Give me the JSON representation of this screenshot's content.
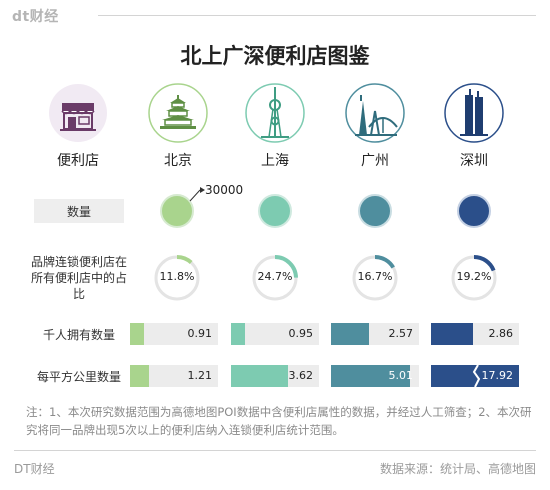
{
  "header": {
    "logo": "dt财经",
    "title": "北上广深便利店图鉴"
  },
  "columns": [
    {
      "label": "便利店",
      "icon": "store-icon"
    },
    {
      "label": "北京",
      "icon": "temple-of-heaven-icon"
    },
    {
      "label": "上海",
      "icon": "oriental-pearl-tower-icon"
    },
    {
      "label": "广州",
      "icon": "canton-tower-icon"
    },
    {
      "label": "深圳",
      "icon": "skyscraper-icon"
    }
  ],
  "rows": {
    "count_label": "数量",
    "count_marker_label": "30000",
    "share_label": "品牌连锁便利店在所有便利店中的占比",
    "per_thousand_label": "千人拥有数量",
    "per_sqkm_label": "每平方公里数量"
  },
  "colors": {
    "beijing": "#a9d48d",
    "shanghai": "#7dcbb1",
    "guangzhou": "#4f8e9e",
    "shenzhen": "#2b4f8a",
    "track": "#ececec"
  },
  "chart_data": {
    "type": "table",
    "title": "北上广深便利店图鉴",
    "cities": [
      "北京",
      "上海",
      "广州",
      "深圳"
    ],
    "chain_share_percent": [
      11.8,
      24.7,
      16.7,
      19.2
    ],
    "chain_share_labels": [
      "11.8%",
      "24.7%",
      "16.7%",
      "19.2%"
    ],
    "per_thousand_people": [
      0.91,
      0.95,
      2.57,
      2.86
    ],
    "per_thousand_labels": [
      "0.91",
      "0.95",
      "2.57",
      "2.86"
    ],
    "per_sq_km": [
      1.21,
      3.62,
      5.01,
      17.92
    ],
    "per_sq_km_labels": [
      "1.21",
      "3.62",
      "5.01",
      "17.92"
    ],
    "count_reference": 30000,
    "count_relative": [
      1.0,
      1.0,
      1.0,
      1.0
    ]
  },
  "footer": {
    "note": "注：1、本次研究数据范围为高德地图POI数据中含便利店属性的数据，并经过人工筛查；2、本次研究将同一品牌出现5次以上的便利店纳入连锁便利店统计范围。",
    "brand": "DT财经",
    "source": "数据来源：统计局、高德地图"
  }
}
